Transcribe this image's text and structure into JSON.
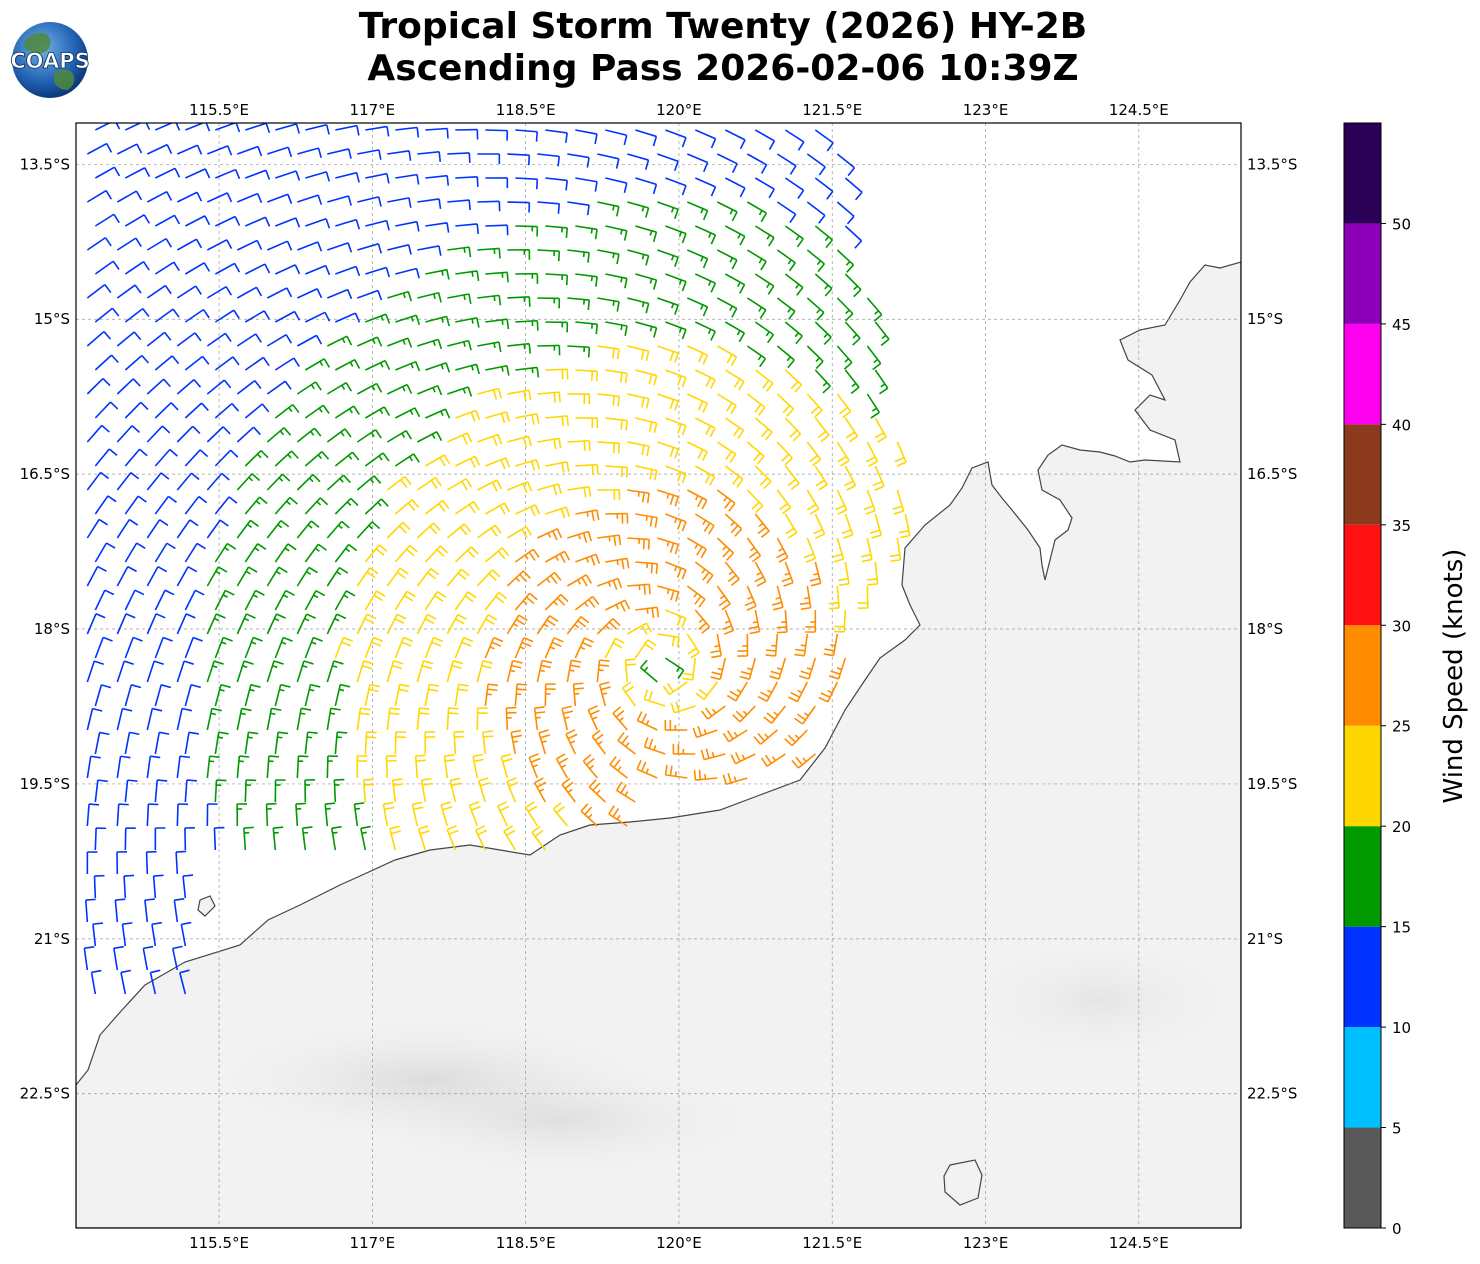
{
  "title": {
    "line1": "Tropical Storm Twenty (2026) HY-2B",
    "line2": "Ascending Pass 2026-02-06 10:39Z"
  },
  "logo": {
    "text": "COAPS"
  },
  "map": {
    "lon_ticks": [
      "115.5°E",
      "117°E",
      "118.5°E",
      "120°E",
      "121.5°E",
      "123°E",
      "124.5°E"
    ],
    "lon_values": [
      115.5,
      117,
      118.5,
      120,
      121.5,
      123,
      124.5
    ],
    "lat_ticks": [
      "13.5°S",
      "15°S",
      "16.5°S",
      "18°S",
      "19.5°S",
      "21°S",
      "22.5°S"
    ],
    "lat_values": [
      -13.5,
      -15,
      -16.5,
      -18,
      -19.5,
      -21,
      -22.5
    ],
    "lon_range": [
      114.1,
      125.5
    ],
    "lat_range": [
      -23.8,
      -13.1
    ],
    "gridlines": true,
    "storm_center": {
      "lon": 119.85,
      "lat": -18.35
    },
    "land_color": "#f2f2f2",
    "ocean_color": "#ffffff",
    "coast_color": "#444444"
  },
  "colorbar": {
    "label": "Wind Speed (knots)",
    "ticks": [
      "0",
      "5",
      "10",
      "15",
      "20",
      "25",
      "30",
      "35",
      "40",
      "45",
      "50"
    ],
    "colors": [
      "#595959",
      "#00bfff",
      "#0033ff",
      "#009900",
      "#ffd700",
      "#ff8c00",
      "#ff1111",
      "#8b3a1e",
      "#ff00ee",
      "#8b00b8",
      "#2b0057"
    ]
  }
}
